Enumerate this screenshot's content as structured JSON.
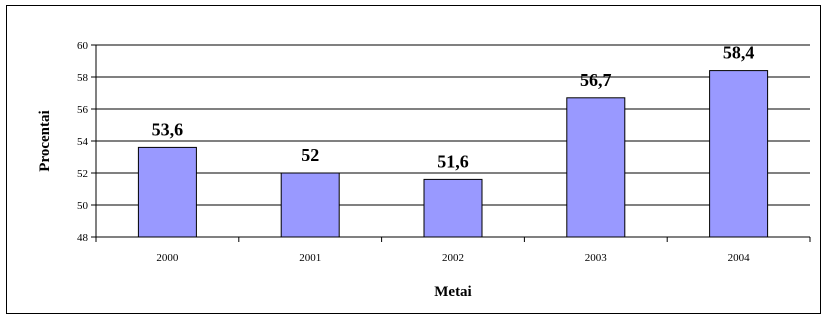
{
  "chart_data": {
    "type": "bar",
    "categories": [
      "2000",
      "2001",
      "2002",
      "2003",
      "2004"
    ],
    "values": [
      53.6,
      52,
      51.6,
      56.7,
      58.4
    ],
    "data_labels": [
      "53,6",
      "52",
      "51,6",
      "56,7",
      "58,4"
    ],
    "xlabel": "Metai",
    "ylabel": "Procentai",
    "ylim": [
      48,
      60
    ],
    "yticks": [
      48,
      50,
      52,
      54,
      56,
      58,
      60
    ],
    "grid": true,
    "legend": "none",
    "bar_color": "#9999ff",
    "bar_edge_color": "#000000"
  }
}
